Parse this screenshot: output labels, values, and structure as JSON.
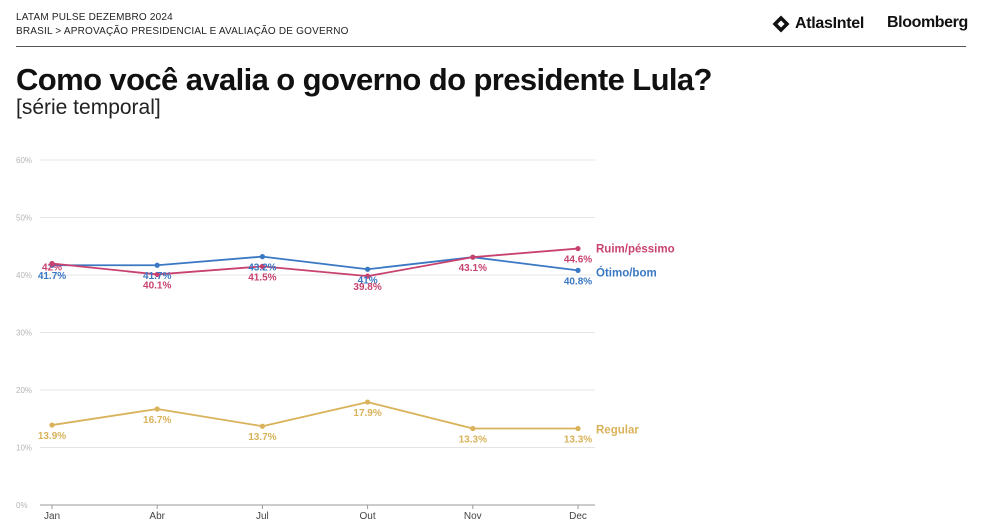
{
  "header": {
    "survey": "LATAM PULSE DEZEMBRO 2024",
    "breadcrumb": "BRASIL > APROVAÇÃO PRESIDENCIAL E AVALIAÇÃO DE GOVERNO",
    "logo_atlas": "AtlasIntel",
    "logo_bloomberg": "Bloomberg"
  },
  "title": "Como você avalia o governo do presidente Lula?",
  "subtitle": "[série temporal]",
  "colors": {
    "ruim": "#c8426f",
    "otimo": "#3a78c3",
    "regular": "#d9b25a",
    "grid": "#e4e4e4",
    "axis": "#999999"
  },
  "chart_data": {
    "type": "line",
    "categories": [
      "Jan",
      "Abr",
      "Jul",
      "Out",
      "Nov",
      "Dec"
    ],
    "ylim": [
      0,
      60
    ],
    "yticks": [
      "0%",
      "10%",
      "20%",
      "30%",
      "40%",
      "50%",
      "60%"
    ],
    "grid": true,
    "series": [
      {
        "key": "otimo",
        "name": "Ótimo/bom",
        "values": [
          41.7,
          41.7,
          43.2,
          41,
          43.1,
          40.8
        ],
        "labels": [
          "41.7%",
          "41.7%",
          "43.2%",
          "41%",
          "",
          "40.8%"
        ]
      },
      {
        "key": "ruim",
        "name": "Ruim/péssimo",
        "values": [
          42,
          40.1,
          41.5,
          39.8,
          43.1,
          44.6
        ],
        "labels": [
          "42%",
          "40.1%",
          "41.5%",
          "39.8%",
          "43.1%",
          "44.6%"
        ]
      },
      {
        "key": "regular",
        "name": "Regular",
        "values": [
          13.9,
          16.7,
          13.7,
          17.9,
          13.3,
          13.3
        ],
        "labels": [
          "13.9%",
          "16.7%",
          "13.7%",
          "17.9%",
          "13.3%",
          "13.3%"
        ]
      }
    ]
  }
}
